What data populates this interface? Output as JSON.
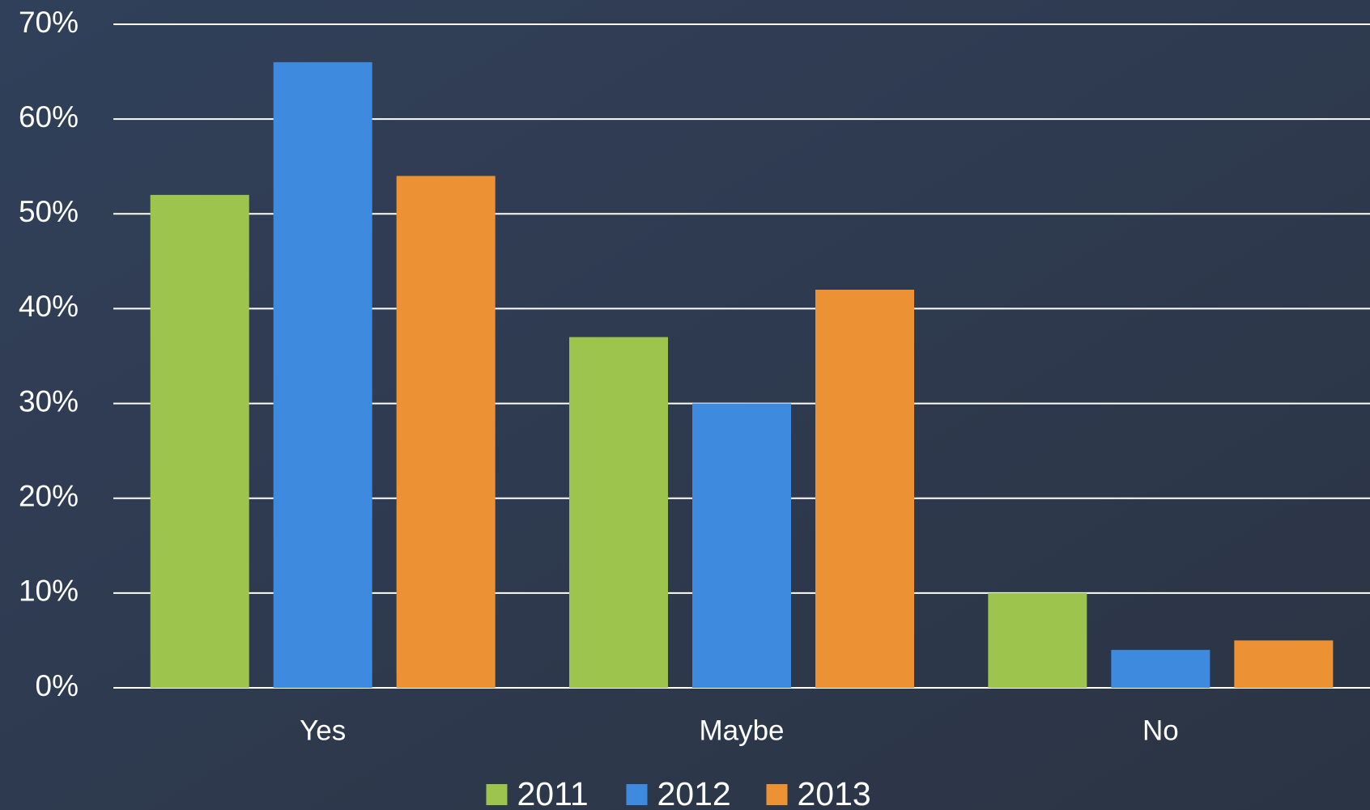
{
  "chart_data": {
    "type": "bar",
    "categories": [
      "Yes",
      "Maybe",
      "No"
    ],
    "series": [
      {
        "name": "2011",
        "color": "#9dc44d",
        "values": [
          52,
          37,
          10
        ]
      },
      {
        "name": "2012",
        "color": "#3d8ade",
        "values": [
          66,
          30,
          4
        ]
      },
      {
        "name": "2013",
        "color": "#ec9134",
        "values": [
          54,
          42,
          5
        ]
      }
    ],
    "ylim": [
      0,
      70
    ],
    "yticks": [
      {
        "value": 0,
        "label": "0%"
      },
      {
        "value": 10,
        "label": "10%"
      },
      {
        "value": 20,
        "label": "20%"
      },
      {
        "value": 30,
        "label": "30%"
      },
      {
        "value": 40,
        "label": "40%"
      },
      {
        "value": 50,
        "label": "50%"
      },
      {
        "value": 60,
        "label": "60%"
      },
      {
        "value": 70,
        "label": "70%"
      }
    ],
    "grid": true,
    "legend": "bottom"
  }
}
